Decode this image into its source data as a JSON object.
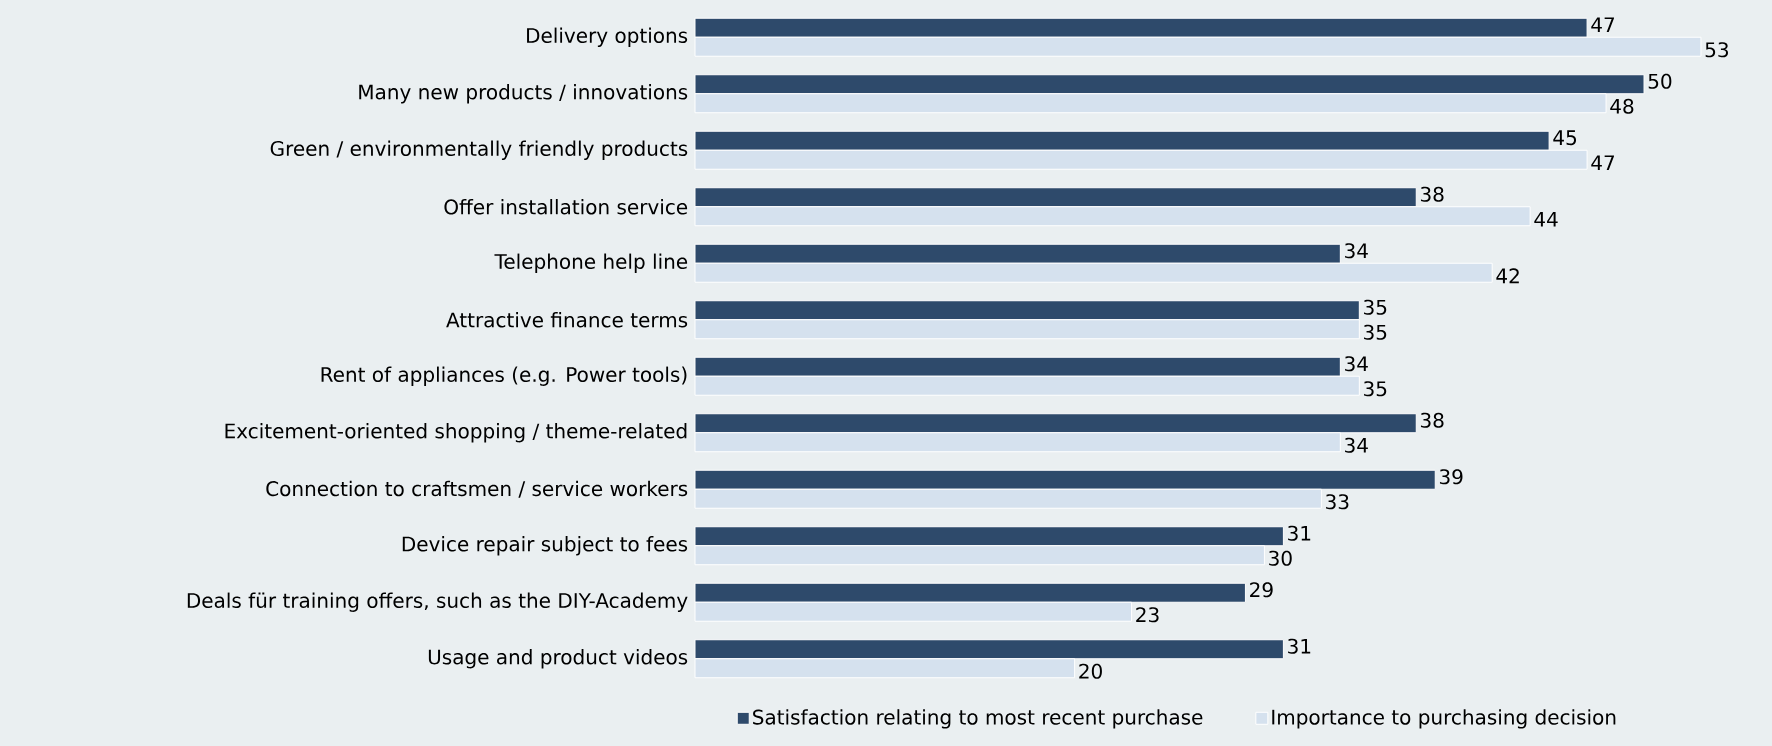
{
  "chart_data": {
    "type": "bar",
    "orientation": "horizontal",
    "data_labels": true,
    "legend": "bottom",
    "categories": [
      "Delivery options",
      "Many new products / innovations",
      "Green / environmentally friendly products",
      "Offer installation service",
      "Telephone help line",
      "Attractive finance terms",
      "Rent of appliances (e.g. Power tools)",
      "Excitement-oriented shopping / theme-related",
      "Connection to craftsmen / service workers",
      "Device repair subject to fees",
      "Deals für training offers, such as the DIY-Academy",
      "Usage and product videos"
    ],
    "series": [
      {
        "name": "Satisfaction relating to most recent purchase",
        "color": "#2e4a6b",
        "values": [
          47,
          50,
          45,
          38,
          34,
          35,
          34,
          38,
          39,
          31,
          29,
          31
        ]
      },
      {
        "name": "Importance to purchasing decision",
        "color": "#d5e1ee",
        "values": [
          53,
          48,
          47,
          44,
          42,
          35,
          35,
          34,
          33,
          30,
          23,
          20
        ]
      }
    ]
  }
}
